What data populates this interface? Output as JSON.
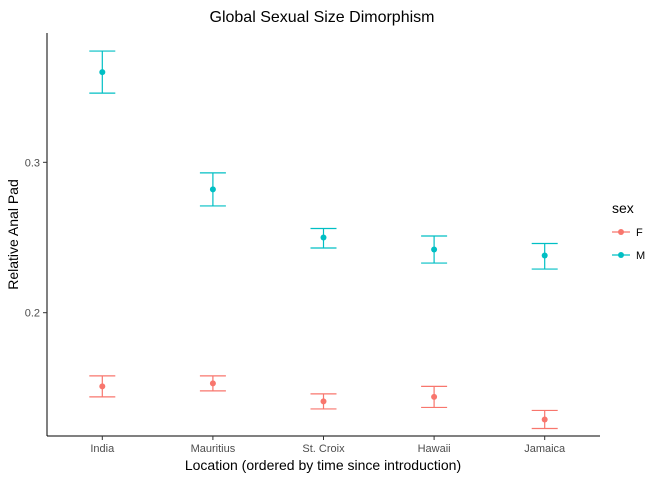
{
  "chart_data": {
    "type": "scatter",
    "title": "Global Sexual Size Dimorphism",
    "xlabel": "Location (ordered by time since introduction)",
    "ylabel": "Relative Anal Pad",
    "categories": [
      "India",
      "Mauritius",
      "St. Croix",
      "Hawaii",
      "Jamaica"
    ],
    "ylim": [
      0.118,
      0.386
    ],
    "yticks": [
      0.2,
      0.3
    ],
    "ytick_labels": [
      "0.2",
      "0.3"
    ],
    "grid": false,
    "legend": {
      "title": "sex",
      "position": "right"
    },
    "series": [
      {
        "name": "F",
        "color": "#F8766D",
        "values": [
          0.151,
          0.153,
          0.141,
          0.144,
          0.129
        ],
        "lower": [
          0.144,
          0.148,
          0.136,
          0.137,
          0.123
        ],
        "upper": [
          0.158,
          0.158,
          0.146,
          0.151,
          0.135
        ]
      },
      {
        "name": "M",
        "color": "#00BFC4",
        "values": [
          0.36,
          0.282,
          0.25,
          0.242,
          0.238
        ],
        "lower": [
          0.346,
          0.271,
          0.243,
          0.233,
          0.229
        ],
        "upper": [
          0.374,
          0.293,
          0.256,
          0.251,
          0.246
        ]
      }
    ]
  }
}
